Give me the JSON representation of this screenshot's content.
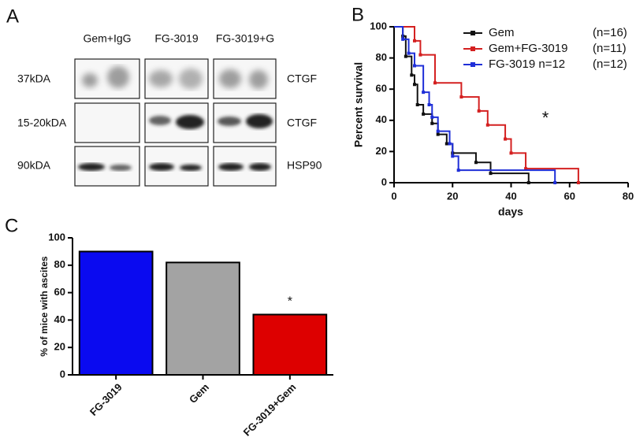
{
  "panel_labels": [
    "A",
    "B",
    "C"
  ],
  "blot": {
    "columns": [
      "Gem+IgG",
      "FG-3019",
      "FG-3019+G"
    ],
    "rows": [
      {
        "size": "37kDA",
        "protein": "CTGF"
      },
      {
        "size": "15-20kDA",
        "protein": "CTGF"
      },
      {
        "size": "90kDA",
        "protein": "HSP90"
      }
    ]
  },
  "chart_data": [
    {
      "type": "step",
      "x_label": "days",
      "y_label": "Percent survival",
      "xlim": [
        0,
        80
      ],
      "xticks": [
        0,
        20,
        40,
        60,
        80
      ],
      "ylim": [
        0,
        100
      ],
      "yticks": [
        0,
        20,
        40,
        60,
        80,
        100
      ],
      "annotation": "*",
      "series": [
        {
          "name": "Gem",
          "n_label": "(n=16)",
          "color": "#111111",
          "x": [
            0,
            3,
            4,
            6,
            7,
            8,
            10,
            13,
            15,
            18,
            20,
            28,
            33,
            46
          ],
          "values": [
            100,
            94,
            81,
            69,
            63,
            50,
            44,
            38,
            31,
            25,
            19,
            13,
            6,
            0
          ]
        },
        {
          "name": "Gem+FG-3019",
          "n_label": "(n=11)",
          "color": "#d42020",
          "x": [
            0,
            7,
            9,
            14,
            23,
            29,
            32,
            38,
            40,
            45,
            63
          ],
          "values": [
            100,
            91,
            82,
            64,
            55,
            46,
            37,
            28,
            19,
            9,
            0
          ]
        },
        {
          "name": "FG-3019 n=12",
          "n_label": "(n=12)",
          "color": "#1f2fd8",
          "x": [
            0,
            3,
            5,
            7,
            10,
            12,
            13,
            15,
            19,
            20,
            22,
            55
          ],
          "values": [
            100,
            92,
            83,
            75,
            58,
            50,
            42,
            33,
            25,
            17,
            8,
            0
          ]
        }
      ]
    },
    {
      "type": "bar",
      "y_label": "% of mice with ascites",
      "categories": [
        "FG-3019",
        "Gem",
        "FG-3019+Gem"
      ],
      "values": [
        90,
        82,
        44
      ],
      "colors": [
        "#0a0af0",
        "#a3a3a3",
        "#dd0000"
      ],
      "ylim": [
        0,
        100
      ],
      "yticks": [
        0,
        20,
        40,
        60,
        80,
        100
      ],
      "annotation": "*"
    }
  ]
}
